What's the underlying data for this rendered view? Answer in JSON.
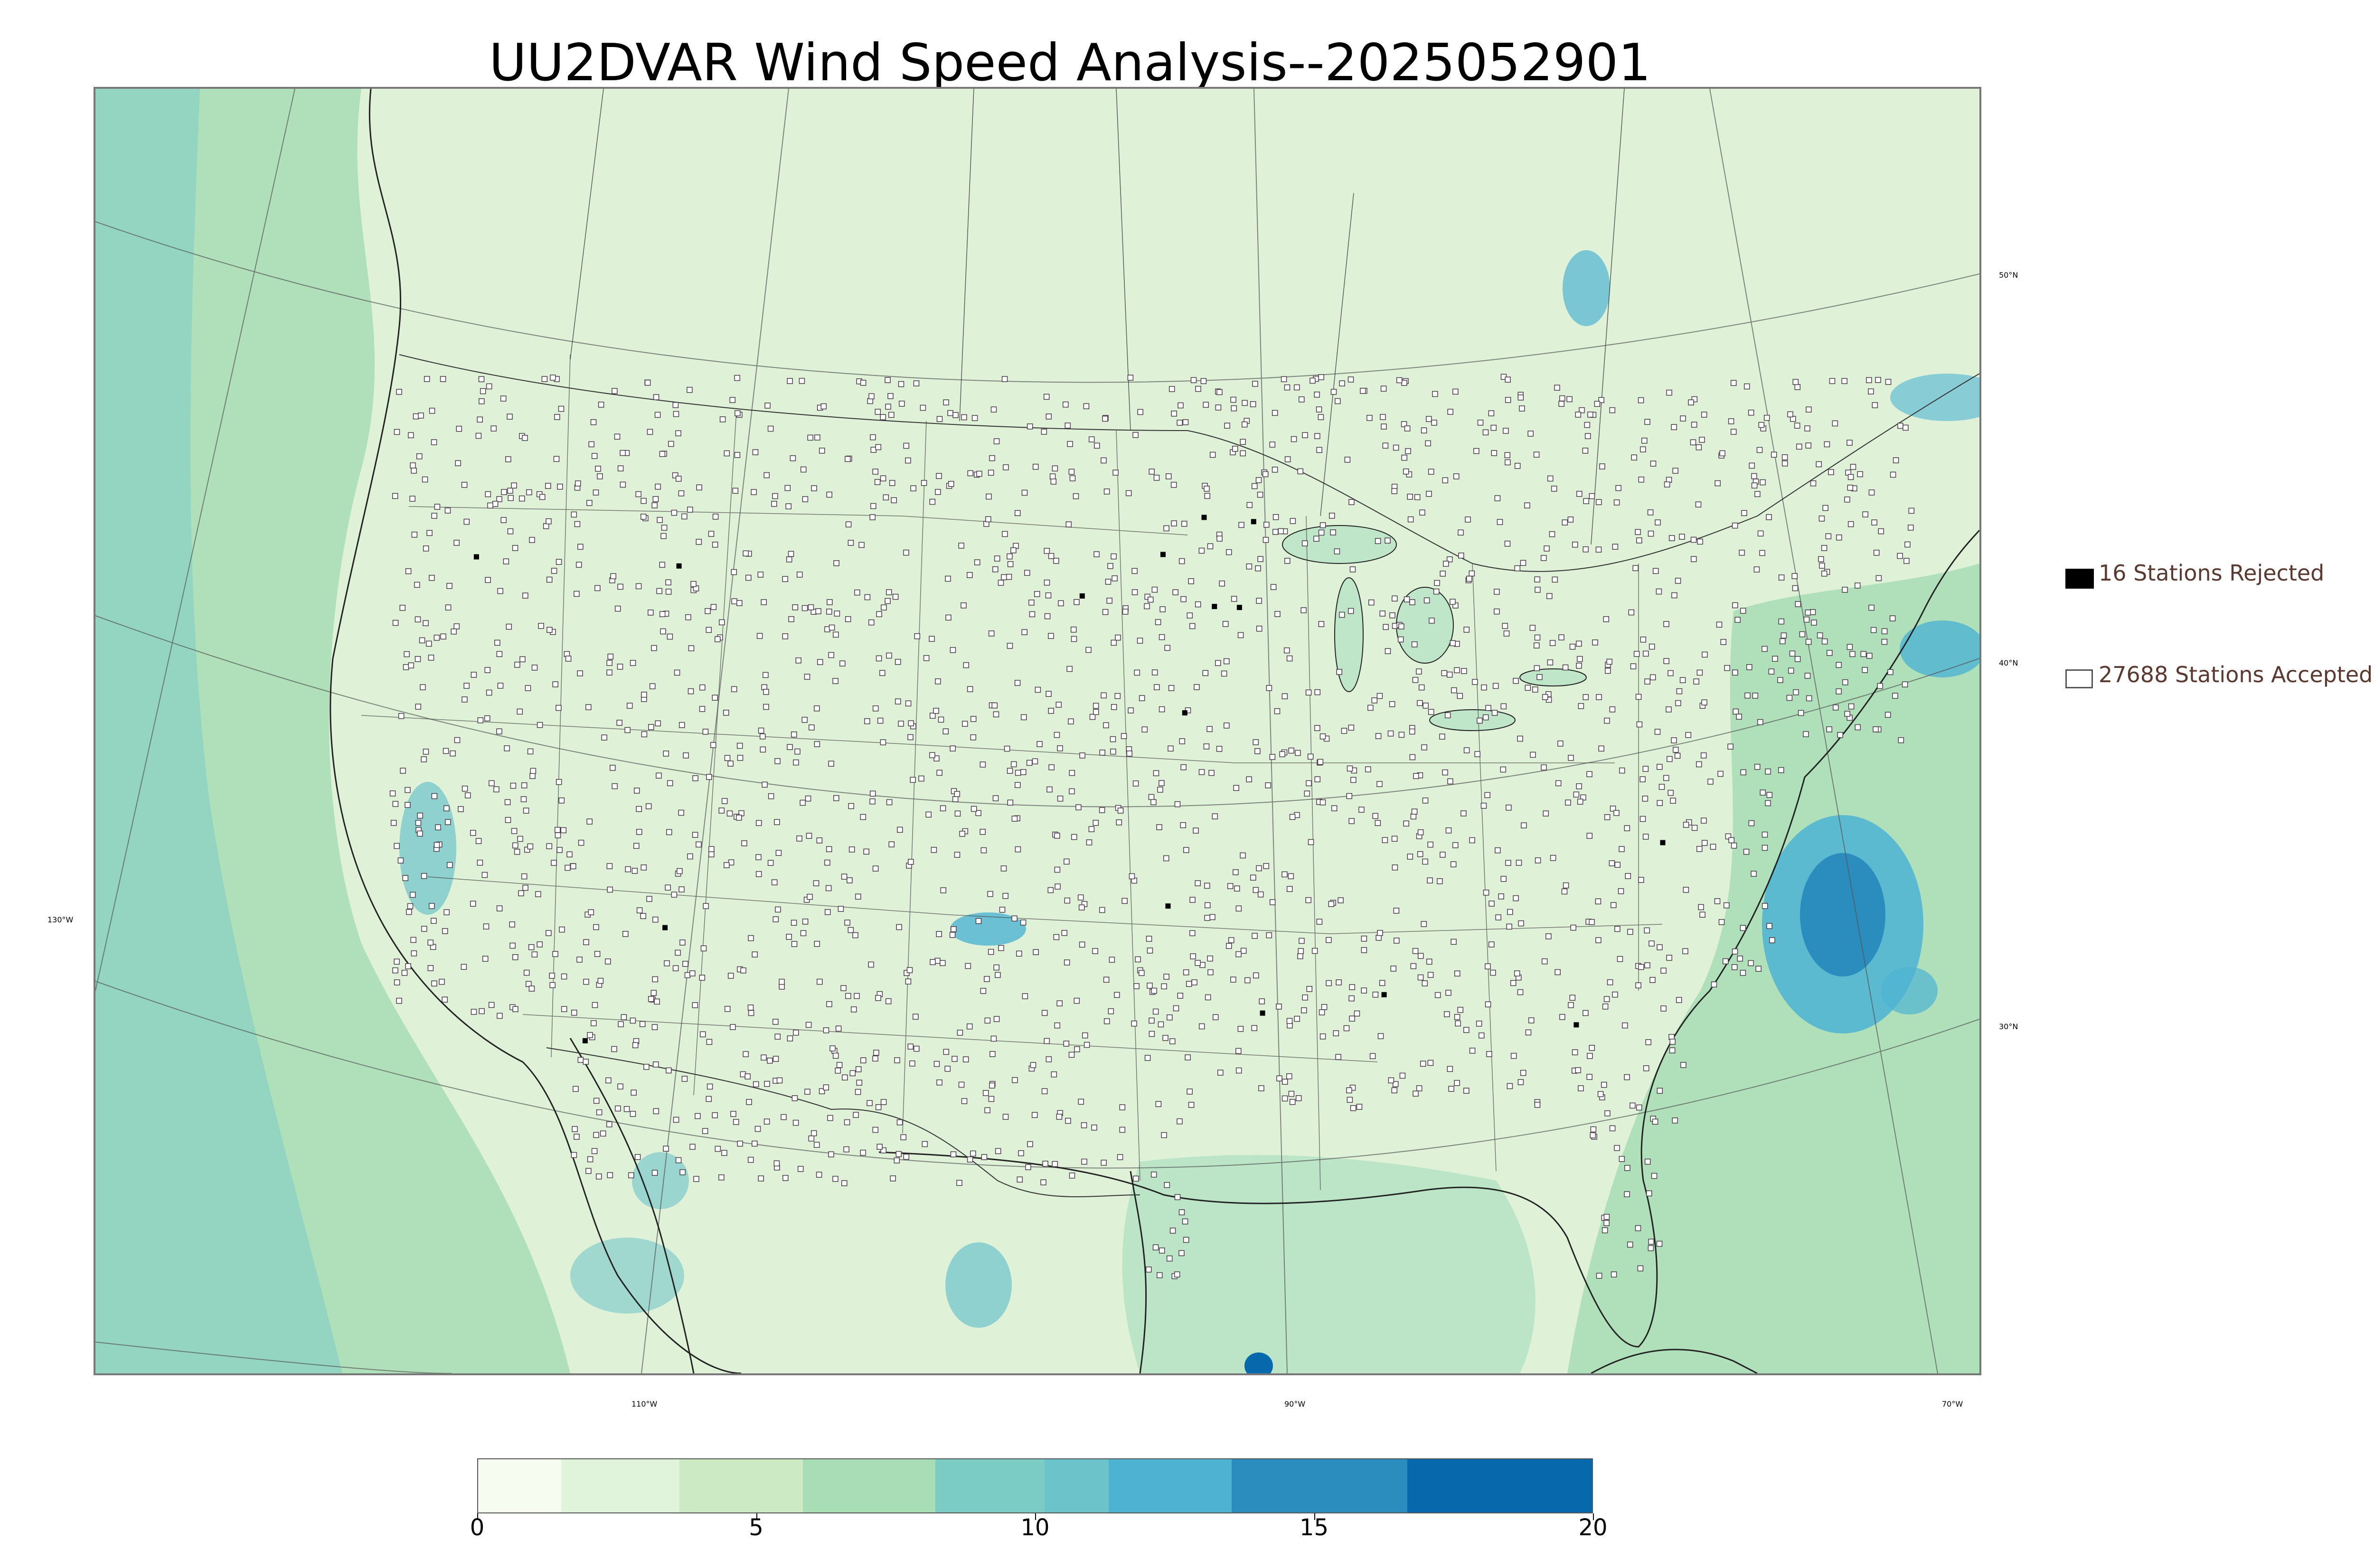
{
  "title": "UU2DVAR Wind Speed Analysis--2025052901",
  "graticule": {
    "lat_labels": [
      "50°N",
      "40°N",
      "30°N"
    ],
    "lon_labels": [
      "130°W",
      "110°W",
      "90°W",
      "70°W"
    ]
  },
  "legend": {
    "rejected": "16 Stations Rejected",
    "accepted": "27688 Stations Accepted"
  },
  "colorbar": {
    "ticks": [
      "0",
      "5",
      "10",
      "15",
      "20"
    ],
    "colors": [
      "#f7fcf0",
      "#e0f3db",
      "#ccebc5",
      "#a8ddb5",
      "#7bccc4",
      "#6cc3ca",
      "#4eb3d3",
      "#2b8cbe",
      "#0868ac"
    ]
  },
  "colors": {
    "land_base": "#e6f5e0",
    "ocean_base": "#b7e3c4",
    "high_wind": "#2b8cbe",
    "station_outline": "#4a3a4a",
    "boundary": "#222222"
  }
}
